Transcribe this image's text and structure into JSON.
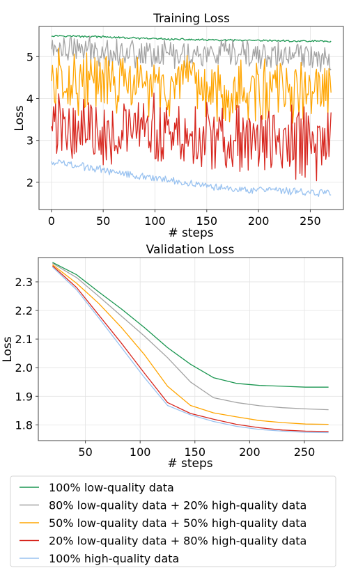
{
  "chart_data": [
    {
      "type": "line",
      "title": "Training Loss",
      "xlabel": "# steps",
      "ylabel": "Loss",
      "xlim": [
        -12,
        282
      ],
      "ylim": [
        1.35,
        5.72
      ],
      "xticks": [
        0,
        50,
        100,
        150,
        200,
        250
      ],
      "yticks": [
        2,
        3,
        4,
        5
      ],
      "grid": true,
      "noisy": true,
      "x": [
        0,
        10,
        20,
        30,
        40,
        50,
        60,
        70,
        80,
        90,
        100,
        110,
        120,
        130,
        140,
        150,
        160,
        170,
        180,
        190,
        200,
        210,
        220,
        230,
        240,
        250,
        260,
        270
      ],
      "series": [
        {
          "name": "100% low-quality data",
          "color": "#1a9650",
          "noise": 0.02,
          "values": [
            5.5,
            5.5,
            5.49,
            5.48,
            5.48,
            5.47,
            5.46,
            5.45,
            5.44,
            5.43,
            5.43,
            5.42,
            5.41,
            5.41,
            5.4,
            5.4,
            5.39,
            5.39,
            5.39,
            5.38,
            5.38,
            5.38,
            5.38,
            5.37,
            5.37,
            5.37,
            5.37,
            5.36
          ]
        },
        {
          "name": "80% low-quality data + 20% high-quality data",
          "color": "#a3a3a3",
          "noise": 0.3,
          "values": [
            5.2,
            5.2,
            5.18,
            5.16,
            5.15,
            5.14,
            5.12,
            5.11,
            5.1,
            5.09,
            5.08,
            5.07,
            5.06,
            5.05,
            5.05,
            5.04,
            5.04,
            5.03,
            5.03,
            5.03,
            5.02,
            5.02,
            5.02,
            5.02,
            5.01,
            5.01,
            5.01,
            5.0
          ]
        },
        {
          "name": "50% low-quality data + 50% high-quality data",
          "color": "#ffa500",
          "noise": 0.65,
          "values": [
            4.45,
            4.45,
            4.42,
            4.4,
            4.38,
            4.36,
            4.34,
            4.32,
            4.3,
            4.28,
            4.26,
            4.25,
            4.24,
            4.23,
            4.22,
            4.21,
            4.2,
            4.19,
            4.18,
            4.18,
            4.17,
            4.17,
            4.16,
            4.16,
            4.15,
            4.15,
            4.15,
            4.14
          ]
        },
        {
          "name": "20% low-quality data + 80% high-quality data",
          "color": "#d7261e",
          "noise": 0.75,
          "values": [
            3.35,
            3.35,
            3.32,
            3.3,
            3.28,
            3.26,
            3.24,
            3.22,
            3.2,
            3.18,
            3.16,
            3.14,
            3.12,
            3.1,
            3.08,
            3.06,
            3.04,
            3.02,
            3.0,
            2.99,
            2.98,
            2.97,
            2.96,
            2.95,
            2.95,
            2.94,
            2.94,
            2.93
          ]
        },
        {
          "name": "100% high-quality data",
          "color": "#99c2f0",
          "noise": 0.08,
          "values": [
            2.5,
            2.45,
            2.42,
            2.38,
            2.34,
            2.3,
            2.26,
            2.22,
            2.18,
            2.14,
            2.1,
            2.06,
            2.02,
            1.99,
            1.96,
            1.93,
            1.9,
            1.87,
            1.85,
            1.83,
            1.81,
            1.8,
            1.79,
            1.78,
            1.77,
            1.76,
            1.75,
            1.75
          ]
        }
      ]
    },
    {
      "type": "line",
      "title": "Validation Loss",
      "xlabel": "# steps",
      "ylabel": "Loss",
      "xlim": [
        7,
        285
      ],
      "ylim": [
        1.745,
        2.385
      ],
      "xticks": [
        50,
        100,
        150,
        200,
        250
      ],
      "yticks": [
        "1.8",
        "1.9",
        "2.0",
        "2.1",
        "2.2",
        "2.3"
      ],
      "grid": true,
      "noisy": false,
      "x": [
        20,
        42,
        62,
        83,
        104,
        125,
        146,
        167,
        188,
        209,
        230,
        251,
        272
      ],
      "series": [
        {
          "name": "100% low-quality data",
          "color": "#1a9650",
          "values": [
            2.368,
            2.325,
            2.265,
            2.205,
            2.14,
            2.07,
            2.012,
            1.965,
            1.945,
            1.938,
            1.935,
            1.932,
            1.932
          ]
        },
        {
          "name": "80% low-quality data + 20% high-quality data",
          "color": "#a3a3a3",
          "values": [
            2.365,
            2.315,
            2.25,
            2.18,
            2.11,
            2.035,
            1.95,
            1.895,
            1.878,
            1.867,
            1.86,
            1.856,
            1.853
          ]
        },
        {
          "name": "50% low-quality data + 50% high-quality data",
          "color": "#ffa500",
          "values": [
            2.36,
            2.295,
            2.225,
            2.14,
            2.045,
            1.935,
            1.868,
            1.842,
            1.828,
            1.815,
            1.808,
            1.803,
            1.802
          ]
        },
        {
          "name": "20% low-quality data + 80% high-quality data",
          "color": "#d7261e",
          "values": [
            2.356,
            2.28,
            2.185,
            2.085,
            1.98,
            1.878,
            1.84,
            1.82,
            1.802,
            1.79,
            1.782,
            1.778,
            1.777
          ]
        },
        {
          "name": "100% high-quality data",
          "color": "#99c2f0",
          "values": [
            2.352,
            2.272,
            2.175,
            2.07,
            1.965,
            1.868,
            1.835,
            1.812,
            1.795,
            1.784,
            1.778,
            1.774,
            1.773
          ]
        }
      ]
    }
  ],
  "legend": {
    "placement": "bottom",
    "entries": [
      {
        "label": "100% low-quality data",
        "color": "#1a9650"
      },
      {
        "label": "80% low-quality data + 20% high-quality data",
        "color": "#a3a3a3"
      },
      {
        "label": "50% low-quality data + 50% high-quality data",
        "color": "#ffa500"
      },
      {
        "label": "20% low-quality data + 80% high-quality data",
        "color": "#d7261e"
      },
      {
        "label": "100% high-quality data",
        "color": "#99c2f0"
      }
    ]
  }
}
